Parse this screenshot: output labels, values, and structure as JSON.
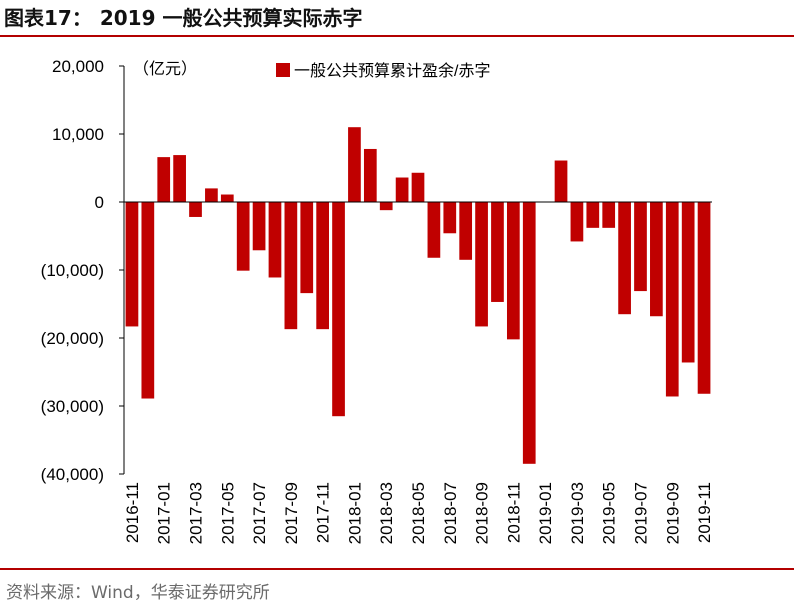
{
  "figure": {
    "label": "图表17：",
    "title": "2019 一般公共预算实际赤字",
    "source": "资料来源：Wind，华泰证券研究所"
  },
  "colors": {
    "bar": "#c00000",
    "rule": "#b30000",
    "text": "#000000"
  },
  "chart_data": {
    "type": "bar",
    "unit_label": "（亿元）",
    "ylim": [
      -40000,
      20000
    ],
    "yticks": [
      20000,
      10000,
      0,
      -10000,
      -20000,
      -30000,
      -40000
    ],
    "ytick_labels": [
      "20,000",
      "10,000",
      "0",
      "(10,000)",
      "(20,000)",
      "(30,000)",
      "(40,000)"
    ],
    "grid": false,
    "legend_position": "top",
    "categories": [
      "2016-11",
      "2016-12",
      "2017-01",
      "2017-02",
      "2017-03",
      "2017-04",
      "2017-05",
      "2017-06",
      "2017-07",
      "2017-08",
      "2017-09",
      "2017-10",
      "2017-11",
      "2017-12",
      "2018-01",
      "2018-02",
      "2018-03",
      "2018-04",
      "2018-05",
      "2018-06",
      "2018-07",
      "2018-08",
      "2018-09",
      "2018-10",
      "2018-11",
      "2018-12",
      "2019-01",
      "2019-02",
      "2019-03",
      "2019-04",
      "2019-05",
      "2019-06",
      "2019-07",
      "2019-08",
      "2019-09",
      "2019-10",
      "2019-11"
    ],
    "tick_labels": [
      "2016-11",
      "2017-01",
      "2017-03",
      "2017-05",
      "2017-07",
      "2017-09",
      "2017-11",
      "2018-01",
      "2018-03",
      "2018-05",
      "2018-07",
      "2018-09",
      "2018-11",
      "2019-01",
      "2019-03",
      "2019-05",
      "2019-07",
      "2019-09",
      "2019-11"
    ],
    "series": [
      {
        "name": "一般公共预算累计盈余/赤字",
        "values": [
          -18300,
          -28900,
          6600,
          6900,
          -2200,
          2000,
          1100,
          -10100,
          -7100,
          -11100,
          -18700,
          -13400,
          -18700,
          -31500,
          11000,
          7800,
          -1200,
          3600,
          4300,
          -8200,
          -4600,
          -8500,
          -18300,
          -14700,
          -20200,
          -38500,
          0,
          6100,
          -5800,
          -3800,
          -3800,
          -16500,
          -13100,
          -16800,
          -28600,
          -23600,
          -28200
        ]
      }
    ]
  }
}
